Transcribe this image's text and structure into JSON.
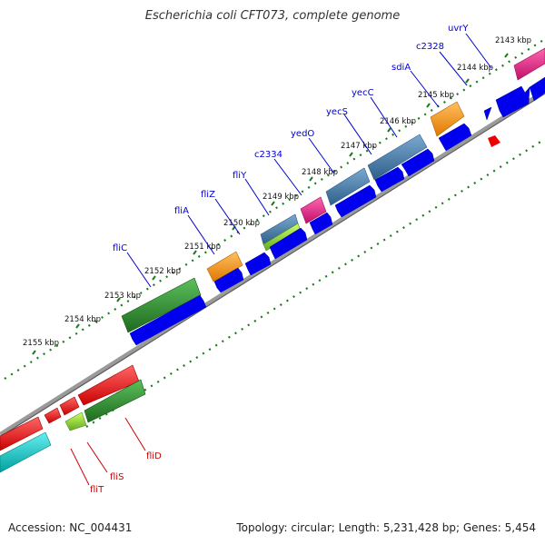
{
  "title": "Escherichia coli CFT073, complete genome",
  "accession": "Accession: NC_004431",
  "topology": "Topology: circular; Length: 5,231,428 bp; Genes: 5,454",
  "kbp_ticks": [
    "2143 kbp",
    "2144 kbp",
    "2145 kbp",
    "2146 kbp",
    "2147 kbp",
    "2148 kbp",
    "2149 kbp",
    "2150 kbp",
    "2151 kbp",
    "2152 kbp",
    "2153 kbp",
    "2154 kbp",
    "2155 kbp"
  ],
  "forward_gene_labels": [
    "uvrY",
    "c2328",
    "sdiA",
    "yecC",
    "yecS",
    "yedO",
    "c2334",
    "fliY",
    "fliZ",
    "fliA",
    "fliC"
  ],
  "reverse_gene_labels": [
    "fliD",
    "fliS",
    "fliT"
  ],
  "colors": {
    "forward_label": "#0000cc",
    "reverse_label": "#cc0000",
    "backbone": "#808080",
    "tick": "#1a7a1a",
    "cds_blue": "#0000ee",
    "magenta": "#ee1188",
    "orange": "#ff9900",
    "steelblue": "#4682b4",
    "green": "#228b22",
    "lightgreen": "#99dd33",
    "red": "#ee0000",
    "cyan": "#00cccc"
  }
}
